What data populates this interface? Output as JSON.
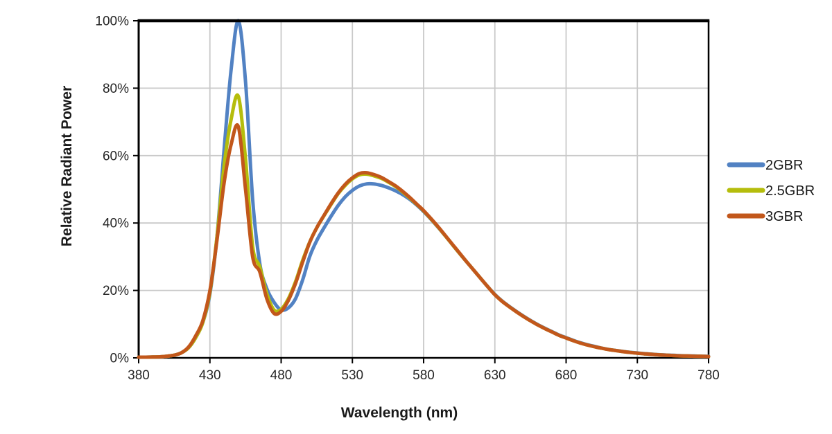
{
  "chart_data": {
    "type": "line",
    "title": "",
    "xlabel": "Wavelength (nm)",
    "ylabel": "Relative Radiant Power",
    "xlim": [
      380,
      780
    ],
    "ylim": [
      0,
      100
    ],
    "x_ticks": [
      380,
      430,
      480,
      530,
      580,
      630,
      680,
      730,
      780
    ],
    "y_ticks": [
      0,
      20,
      40,
      60,
      80,
      100
    ],
    "y_tick_suffix": "%",
    "grid": true,
    "legend_position": "right",
    "colors": {
      "grid": "#C9C9C9",
      "axis": "#000000",
      "tick_text": "#262626",
      "legend_text": "#1a1a1a",
      "background": "#FFFFFF"
    },
    "x": [
      380,
      385,
      390,
      395,
      400,
      405,
      410,
      415,
      420,
      425,
      430,
      435,
      440,
      445,
      450,
      455,
      460,
      465,
      470,
      475,
      480,
      485,
      490,
      495,
      500,
      505,
      510,
      515,
      520,
      525,
      530,
      535,
      540,
      545,
      550,
      555,
      560,
      565,
      570,
      575,
      580,
      585,
      590,
      595,
      600,
      605,
      610,
      615,
      620,
      625,
      630,
      635,
      640,
      645,
      650,
      655,
      660,
      665,
      670,
      675,
      680,
      685,
      690,
      695,
      700,
      705,
      710,
      715,
      720,
      725,
      730,
      735,
      740,
      745,
      750,
      755,
      760,
      765,
      770,
      775,
      780
    ],
    "series": [
      {
        "name": "2GBR",
        "color": "#5282C3",
        "values": [
          0.2,
          0.2,
          0.25,
          0.3,
          0.5,
          0.8,
          1.5,
          3,
          6,
          10.5,
          19,
          36,
          62,
          86,
          100,
          82,
          47,
          28,
          20.5,
          16.5,
          14.2,
          14.8,
          17.5,
          23,
          30,
          34.8,
          38.5,
          42,
          45.2,
          47.8,
          49.7,
          51,
          51.6,
          51.6,
          51.2,
          50.5,
          49.6,
          48.5,
          47.1,
          45.4,
          43.4,
          41.2,
          38.8,
          36.3,
          33.7,
          31.1,
          28.6,
          26.1,
          23.6,
          21.1,
          18.8,
          16.9,
          15.3,
          13.8,
          12.4,
          11.1,
          9.9,
          8.8,
          7.8,
          6.8,
          6,
          5.2,
          4.5,
          3.9,
          3.4,
          2.9,
          2.5,
          2.2,
          1.9,
          1.65,
          1.45,
          1.25,
          1.1,
          0.95,
          0.85,
          0.75,
          0.65,
          0.6,
          0.55,
          0.5,
          0.45
        ]
      },
      {
        "name": "2.5GBR",
        "color": "#B5BD0C",
        "values": [
          0.2,
          0.2,
          0.25,
          0.3,
          0.5,
          0.8,
          1.5,
          3,
          6,
          10.5,
          19.5,
          36,
          57,
          71,
          77.5,
          59,
          33,
          27,
          19,
          14.2,
          14.4,
          17.5,
          22.5,
          28.8,
          34.3,
          38.6,
          42.1,
          45.5,
          48.7,
          51.2,
          53.1,
          54.3,
          54.5,
          54,
          53.3,
          52.2,
          50.9,
          49.3,
          47.5,
          45.6,
          43.6,
          41.3,
          38.9,
          36.3,
          33.7,
          31.1,
          28.6,
          26.1,
          23.6,
          21.1,
          18.7,
          16.8,
          15.2,
          13.7,
          12.3,
          11,
          9.8,
          8.7,
          7.7,
          6.7,
          5.9,
          5.1,
          4.4,
          3.8,
          3.3,
          2.85,
          2.45,
          2.15,
          1.85,
          1.6,
          1.4,
          1.2,
          1.05,
          0.9,
          0.8,
          0.7,
          0.6,
          0.55,
          0.5,
          0.45,
          0.4
        ]
      },
      {
        "name": "3GBR",
        "color": "#C2571B",
        "values": [
          0.2,
          0.2,
          0.25,
          0.3,
          0.5,
          0.8,
          1.5,
          3.2,
          6.5,
          11,
          20,
          35,
          52,
          63.5,
          68.5,
          50,
          30,
          25.5,
          17.5,
          13.2,
          13.8,
          17,
          22,
          28.3,
          34.2,
          38.6,
          42.2,
          45.7,
          48.9,
          51.5,
          53.4,
          54.7,
          54.9,
          54.4,
          53.6,
          52.4,
          51.1,
          49.5,
          47.7,
          45.7,
          43.7,
          41.4,
          39,
          36.4,
          33.8,
          31.2,
          28.6,
          26.1,
          23.6,
          21.1,
          18.7,
          16.8,
          15.2,
          13.7,
          12.3,
          11,
          9.8,
          8.7,
          7.7,
          6.7,
          5.9,
          5.1,
          4.4,
          3.8,
          3.3,
          2.85,
          2.45,
          2.15,
          1.85,
          1.6,
          1.4,
          1.2,
          1.05,
          0.9,
          0.8,
          0.7,
          0.6,
          0.55,
          0.5,
          0.45,
          0.4
        ]
      }
    ]
  },
  "layout_meta": {
    "note": ""
  }
}
